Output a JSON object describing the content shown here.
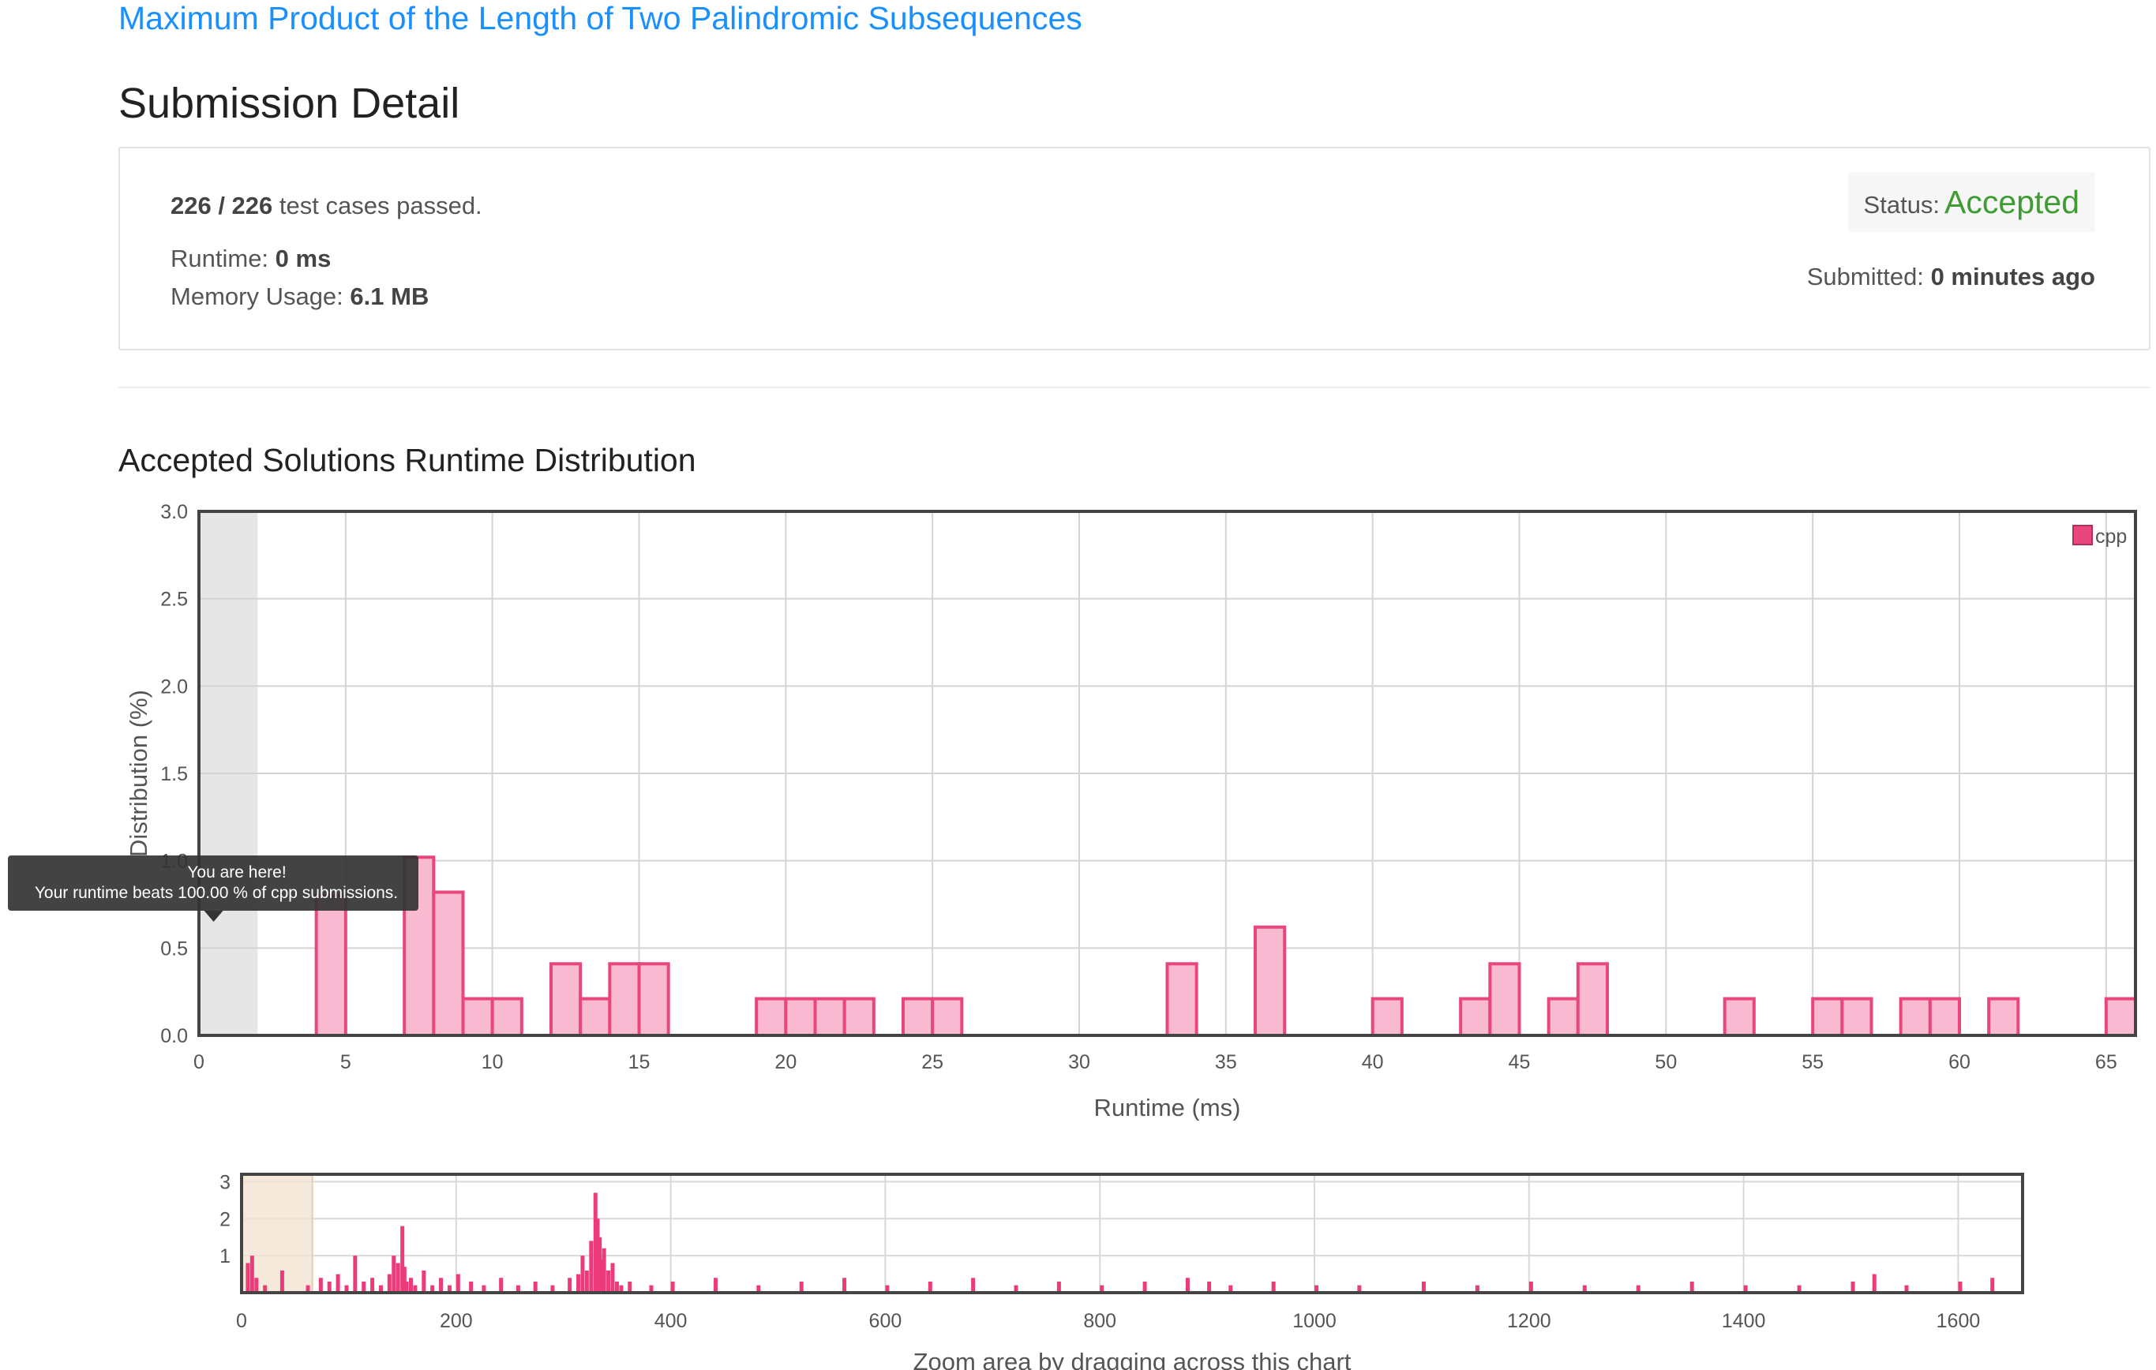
{
  "problem": {
    "title": "Maximum Product of the Length of Two Palindromic Subsequences"
  },
  "page": {
    "title": "Submission Detail"
  },
  "summary": {
    "passed": "226 / 226",
    "passed_suffix": "test cases passed.",
    "runtime_label": "Runtime:",
    "runtime_value": "0 ms",
    "memory_label": "Memory Usage:",
    "memory_value": "6.1 MB",
    "status_label": "Status:",
    "status_value": "Accepted",
    "submitted_label": "Submitted:",
    "submitted_value": "0 minutes ago"
  },
  "colors": {
    "accent": "#1a90ff",
    "accepted": "#3f9c35",
    "bar_fill": "#f9b9d1",
    "bar_stroke": "#e8467c",
    "nav_bar": "#ec3b7a"
  },
  "chart_data": [
    {
      "type": "bar",
      "title": "Accepted Solutions Runtime Distribution",
      "xlabel": "Runtime (ms)",
      "ylabel": "Distribution (%)",
      "xlim": [
        0,
        66
      ],
      "ylim": [
        0,
        3.0
      ],
      "xticks": [
        0,
        5,
        10,
        15,
        20,
        25,
        30,
        35,
        40,
        45,
        50,
        55,
        60,
        65
      ],
      "yticks": [
        "0.0",
        "0.5",
        "1.0",
        "1.5",
        "2.0",
        "2.5",
        "3.0"
      ],
      "legend": {
        "position": "top-right",
        "entries": [
          "cpp"
        ]
      },
      "bin_width": 1,
      "series": [
        {
          "name": "cpp",
          "x": [
            4,
            7,
            8,
            9,
            10,
            12,
            13,
            14,
            15,
            19,
            20,
            21,
            22,
            24,
            25,
            33,
            36,
            40,
            43,
            44,
            46,
            47,
            52,
            55,
            56,
            58,
            59,
            61,
            65
          ],
          "values": [
            0.8,
            1.02,
            0.82,
            0.21,
            0.21,
            0.41,
            0.21,
            0.41,
            0.41,
            0.21,
            0.21,
            0.21,
            0.21,
            0.21,
            0.21,
            0.41,
            0.62,
            0.21,
            0.21,
            0.41,
            0.21,
            0.41,
            0.21,
            0.21,
            0.21,
            0.21,
            0.21,
            0.21,
            0.21
          ]
        }
      ],
      "highlight": {
        "x_range": [
          0,
          2
        ]
      },
      "tooltip": {
        "line1": "You are here!",
        "line2": "Your runtime beats 100.00 % of cpp submissions."
      }
    },
    {
      "type": "bar",
      "xlabel": "Zoom area by dragging across this chart",
      "xlim": [
        0,
        1660
      ],
      "ylim": [
        0,
        3.2
      ],
      "xticks": [
        0,
        200,
        400,
        600,
        800,
        1000,
        1200,
        1400,
        1600
      ],
      "yticks": [
        "1",
        "2",
        "3"
      ],
      "selection": {
        "x_range": [
          0,
          66
        ]
      },
      "series": [
        {
          "name": "cpp",
          "x": [
            4,
            8,
            12,
            20,
            36,
            60,
            72,
            80,
            88,
            96,
            104,
            112,
            120,
            128,
            136,
            140,
            144,
            148,
            150,
            152,
            156,
            160,
            168,
            176,
            184,
            192,
            200,
            212,
            224,
            240,
            256,
            272,
            288,
            304,
            312,
            316,
            320,
            324,
            328,
            330,
            332,
            334,
            336,
            340,
            344,
            348,
            352,
            360,
            380,
            400,
            440,
            480,
            520,
            560,
            600,
            640,
            680,
            720,
            760,
            800,
            840,
            880,
            900,
            920,
            960,
            1000,
            1040,
            1100,
            1150,
            1200,
            1250,
            1300,
            1350,
            1400,
            1450,
            1500,
            1520,
            1550,
            1600,
            1630
          ],
          "values": [
            0.8,
            1.0,
            0.4,
            0.2,
            0.6,
            0.2,
            0.4,
            0.3,
            0.5,
            0.2,
            1.0,
            0.3,
            0.4,
            0.2,
            0.5,
            1.0,
            0.8,
            1.8,
            0.7,
            0.3,
            0.4,
            0.2,
            0.6,
            0.2,
            0.4,
            0.2,
            0.5,
            0.3,
            0.2,
            0.4,
            0.2,
            0.3,
            0.2,
            0.4,
            0.5,
            1.0,
            0.6,
            1.4,
            2.7,
            2.0,
            1.5,
            0.9,
            1.2,
            0.6,
            0.8,
            0.3,
            0.2,
            0.3,
            0.2,
            0.3,
            0.4,
            0.2,
            0.3,
            0.4,
            0.2,
            0.3,
            0.4,
            0.2,
            0.3,
            0.2,
            0.3,
            0.4,
            0.3,
            0.2,
            0.3,
            0.2,
            0.2,
            0.3,
            0.2,
            0.3,
            0.2,
            0.2,
            0.3,
            0.2,
            0.2,
            0.3,
            0.5,
            0.2,
            0.3,
            0.4
          ]
        }
      ]
    }
  ]
}
